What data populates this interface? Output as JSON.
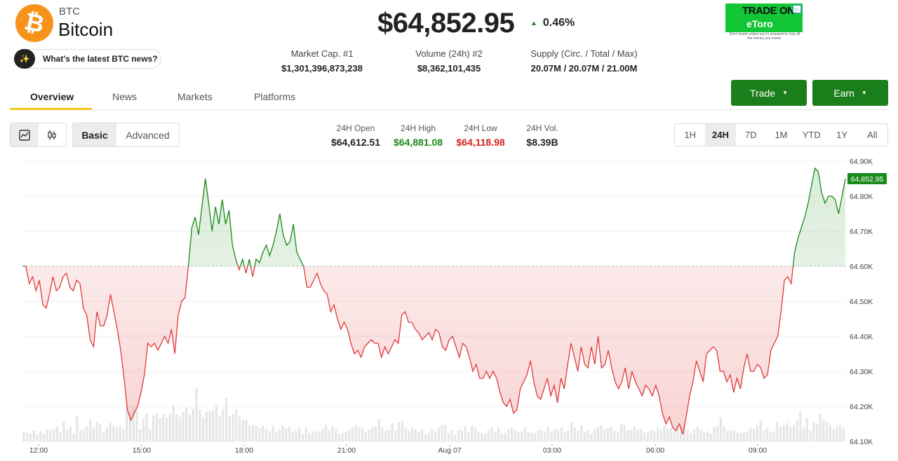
{
  "coin": {
    "symbol": "BTC",
    "name": "Bitcoin",
    "logo_glyph": "₿"
  },
  "news_pill": {
    "label": "What's the latest BTC news?",
    "icon": "sparkle-icon"
  },
  "price": "$64,852.95",
  "change": {
    "pct": "0.46%",
    "direction": "up",
    "color": "#1a8a1a"
  },
  "ad": {
    "line1": "TRADE ON",
    "line2": "eToro",
    "disclaimer": "Don't invest unless you're prepared to lose all the money you invest."
  },
  "stats": {
    "market_cap_label": "Market Cap. #1",
    "market_cap_value": "$1,301,396,873,238",
    "volume_label": "Volume (24h) #2",
    "volume_value": "$8,362,101,435",
    "supply_label": "Supply (Circ. / Total / Max)",
    "supply_value": "20.07M / 20.07M / 21.00M"
  },
  "tabs": [
    {
      "label": "Overview",
      "active": true
    },
    {
      "label": "News",
      "active": false
    },
    {
      "label": "Markets",
      "active": false
    },
    {
      "label": "Platforms",
      "active": false
    }
  ],
  "buttons": {
    "trade": "Trade",
    "earn": "Earn"
  },
  "chart_mode": {
    "basic": "Basic",
    "advanced": "Advanced",
    "selected": "Basic"
  },
  "ohlc": {
    "open_label": "24H Open",
    "open_value": "$64,612.51",
    "high_label": "24H High",
    "high_value": "$64,881.08",
    "low_label": "24H Low",
    "low_value": "$64,118.98",
    "vol_label": "24H Vol.",
    "vol_value": "$8.39B"
  },
  "ranges": [
    "1H",
    "24H",
    "7D",
    "1M",
    "YTD",
    "1Y",
    "All"
  ],
  "selected_range": "24H",
  "colors": {
    "up": "#1a8a1a",
    "down": "#e03a3a",
    "accent": "#f5c518",
    "button": "#1a7f1a"
  },
  "chart_data": {
    "type": "area",
    "baseline": 64600,
    "ylim": [
      64100,
      64900
    ],
    "y_ticks": [
      "64.90K",
      "64.80K",
      "64.70K",
      "64.60K",
      "64.50K",
      "64.40K",
      "64.30K",
      "64.20K",
      "64.10K"
    ],
    "x_ticks": [
      "12:00",
      "15:00",
      "18:00",
      "21:00",
      "Aug 07",
      "03:00",
      "06:00",
      "09:00"
    ],
    "current_price_label": "64,852.95",
    "series": [
      {
        "values": [
          64600,
          64600,
          64550,
          64570,
          64530,
          64560,
          64490,
          64480,
          64520,
          64570,
          64530,
          64540,
          64570,
          64580,
          64540,
          64530,
          64560,
          64550,
          64480,
          64460,
          64390,
          64370,
          64470,
          64430,
          64430,
          64460,
          64520,
          64470,
          64420,
          64360,
          64280,
          64190,
          64160,
          64180,
          64200,
          64240,
          64290,
          64380,
          64370,
          64380,
          64360,
          64380,
          64400,
          64380,
          64420,
          64350,
          64460,
          64500,
          64510,
          64600,
          64710,
          64740,
          64690,
          64770,
          64850,
          64780,
          64700,
          64770,
          64720,
          64790,
          64720,
          64760,
          64660,
          64620,
          64590,
          64620,
          64580,
          64620,
          64570,
          64620,
          64610,
          64640,
          64660,
          64630,
          64660,
          64700,
          64750,
          64690,
          64660,
          64670,
          64720,
          64640,
          64620,
          64600,
          64540,
          64540,
          64560,
          64580,
          64550,
          64530,
          64520,
          64470,
          64490,
          64450,
          64420,
          64440,
          64420,
          64380,
          64350,
          64360,
          64340,
          64370,
          64380,
          64390,
          64380,
          64380,
          64340,
          64370,
          64350,
          64370,
          64390,
          64380,
          64460,
          64470,
          64440,
          64440,
          64420,
          64410,
          64390,
          64400,
          64410,
          64390,
          64420,
          64410,
          64370,
          64360,
          64390,
          64400,
          64370,
          64340,
          64380,
          64370,
          64340,
          64300,
          64320,
          64280,
          64280,
          64300,
          64280,
          64300,
          64280,
          64240,
          64210,
          64200,
          64220,
          64180,
          64190,
          64250,
          64270,
          64290,
          64330,
          64270,
          64230,
          64220,
          64250,
          64280,
          64230,
          64260,
          64210,
          64280,
          64250,
          64320,
          64380,
          64340,
          64300,
          64370,
          64320,
          64310,
          64370,
          64320,
          64400,
          64310,
          64320,
          64360,
          64310,
          64270,
          64250,
          64270,
          64310,
          64250,
          64300,
          64270,
          64250,
          64230,
          64260,
          64250,
          64230,
          64260,
          64230,
          64180,
          64150,
          64170,
          64140,
          64130,
          64150,
          64120,
          64170,
          64230,
          64270,
          64330,
          64300,
          64270,
          64350,
          64360,
          64370,
          64360,
          64300,
          64300,
          64270,
          64290,
          64240,
          64280,
          64250,
          64310,
          64350,
          64300,
          64300,
          64320,
          64310,
          64280,
          64290,
          64360,
          64380,
          64400,
          64470,
          64560,
          64570,
          64550,
          64640,
          64680,
          64710,
          64740,
          64780,
          64830,
          64880,
          64870,
          64810,
          64780,
          64800,
          64800,
          64790,
          64750,
          64800,
          64850
        ]
      }
    ],
    "volume": [
      14,
      13,
      12,
      16,
      11,
      15,
      12,
      17,
      16,
      18,
      21,
      13,
      29,
      16,
      21,
      12,
      38,
      16,
      18,
      22,
      32,
      20,
      28,
      25,
      13,
      21,
      27,
      23,
      21,
      23,
      19,
      50,
      43,
      51,
      45,
      18,
      33,
      40,
      18,
      38,
      41,
      34,
      39,
      35,
      40,
      52,
      40,
      36,
      43,
      50,
      39,
      48,
      78,
      46,
      35,
      43,
      45,
      46,
      54,
      36,
      47,
      64,
      37,
      40,
      47,
      36,
      31,
      32,
      23,
      24,
      23,
      20,
      23,
      18,
      15,
      23,
      13,
      17,
      23,
      19,
      22,
      14,
      17,
      20,
      11,
      21,
      12,
      13,
      15,
      14,
      18,
      24,
      16,
      22,
      18,
      11,
      12,
      13,
      17,
      21,
      24,
      21,
      19,
      14,
      17,
      21,
      22,
      33,
      21,
      16,
      17,
      27,
      16,
      28,
      30,
      21,
      15,
      20,
      18,
      14,
      17,
      10,
      13,
      18,
      14,
      20,
      24,
      24,
      12,
      16,
      10,
      17,
      16,
      22,
      13,
      22,
      20,
      14,
      12,
      11,
      17,
      20,
      14,
      21,
      12,
      12,
      18,
      20,
      17,
      13,
      15,
      21,
      13,
      13,
      12,
      16,
      17,
      14,
      22,
      14,
      18,
      17,
      20,
      13,
      16,
      28,
      20,
      15,
      23,
      14,
      17,
      11,
      17,
      20,
      24,
      18,
      19,
      21,
      15,
      14,
      25,
      24,
      17,
      17,
      22,
      18,
      18,
      13,
      13,
      16,
      15,
      20,
      18,
      23,
      19,
      20,
      13,
      24,
      21,
      26,
      17,
      12,
      17,
      21,
      17,
      13,
      15,
      12,
      21,
      23,
      35,
      22,
      15,
      16,
      17,
      13,
      13,
      13,
      15,
      20,
      19,
      23,
      30,
      16,
      20,
      14,
      14,
      28,
      22,
      24,
      27,
      21,
      24,
      30,
      44,
      21,
      34,
      16,
      28,
      26,
      41,
      32,
      28,
      24,
      18,
      22,
      24,
      20
    ]
  }
}
